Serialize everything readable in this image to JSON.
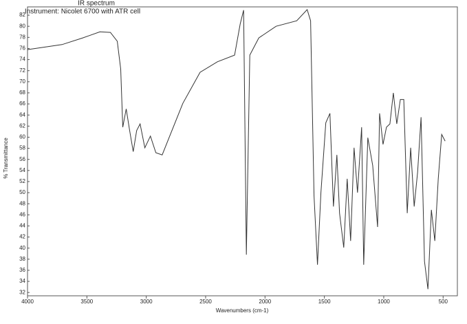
{
  "chart_data": {
    "type": "line",
    "title": "IR spectrum",
    "subtitle": "Instrument: Nicolet 6700 with ATR cell",
    "x_label": "Wavenumbers (cm-1)",
    "y_label": "% Transmittance",
    "xlim": [
      4000,
      380
    ],
    "ylim": [
      31.4,
      83.5
    ],
    "xticks": [
      4000,
      3500,
      3000,
      2500,
      2000,
      1500,
      1000,
      500
    ],
    "yticks": [
      32,
      34,
      36,
      38,
      40,
      42,
      44,
      46,
      48,
      50,
      52,
      54,
      56,
      58,
      60,
      62,
      64,
      66,
      68,
      70,
      72,
      74,
      76,
      78,
      80,
      82
    ],
    "series": [
      {
        "color": "#333333",
        "x": [
          4000,
          3709,
          3535,
          3390,
          3302,
          3244,
          3215,
          3198,
          3169,
          3140,
          3110,
          3081,
          3052,
          3012,
          2965,
          2919,
          2866,
          2808,
          2692,
          2547,
          2401,
          2256,
          2209,
          2180,
          2157,
          2128,
          2052,
          1907,
          1733,
          1645,
          1616,
          1587,
          1558,
          1529,
          1488,
          1453,
          1424,
          1395,
          1372,
          1337,
          1308,
          1279,
          1250,
          1221,
          1186,
          1169,
          1134,
          1093,
          1052,
          1035,
          1006,
          977,
          948,
          919,
          890,
          860,
          831,
          802,
          773,
          744,
          715,
          686,
          657,
          628,
          599,
          570,
          541,
          512,
          483
        ],
        "values": [
          75.8,
          76.7,
          77.9,
          79.0,
          78.9,
          77.3,
          72.3,
          61.8,
          65.1,
          61.2,
          57.4,
          61.2,
          62.4,
          58.1,
          60.2,
          57.2,
          56.8,
          59.9,
          66.1,
          71.7,
          73.6,
          74.8,
          80.4,
          82.9,
          38.8,
          74.8,
          77.9,
          80.0,
          81.0,
          83.0,
          81.0,
          49.4,
          37.0,
          50.0,
          62.6,
          64.3,
          47.5,
          56.8,
          46.3,
          40.1,
          52.5,
          41.3,
          58.1,
          50.0,
          61.8,
          37.0,
          59.9,
          54.9,
          43.8,
          64.3,
          58.7,
          61.8,
          62.4,
          68.0,
          62.4,
          66.8,
          66.8,
          46.3,
          58.1,
          47.5,
          53.7,
          63.6,
          37.6,
          32.6,
          46.9,
          41.3,
          52.5,
          60.5,
          59.3
        ]
      }
    ]
  }
}
